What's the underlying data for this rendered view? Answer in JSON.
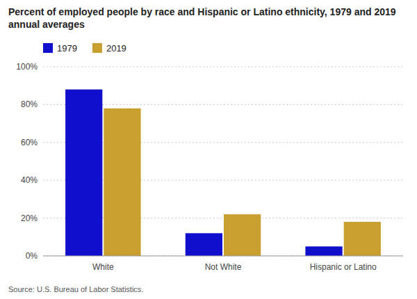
{
  "chart_data": {
    "type": "bar",
    "title": "Percent of employed people by race and Hispanic or Latino ethnicity, 1979 and 2019 annual averages",
    "categories": [
      "White",
      "Not White",
      "Hispanic or Latino"
    ],
    "series": [
      {
        "name": "1979",
        "color": "#1010cc",
        "values": [
          88,
          12,
          5
        ]
      },
      {
        "name": "2019",
        "color": "#c9a030",
        "values": [
          78,
          22,
          18
        ]
      }
    ],
    "ylim": [
      0,
      100
    ],
    "yticks": [
      {
        "value": 0,
        "label": "0%"
      },
      {
        "value": 20,
        "label": "20%"
      },
      {
        "value": 40,
        "label": "40%"
      },
      {
        "value": 60,
        "label": "60%"
      },
      {
        "value": 80,
        "label": "80%"
      },
      {
        "value": 100,
        "label": "100%"
      }
    ],
    "grid": true,
    "legend": "top",
    "source": "Source: U.S. Bureau of Labor Statistics."
  }
}
